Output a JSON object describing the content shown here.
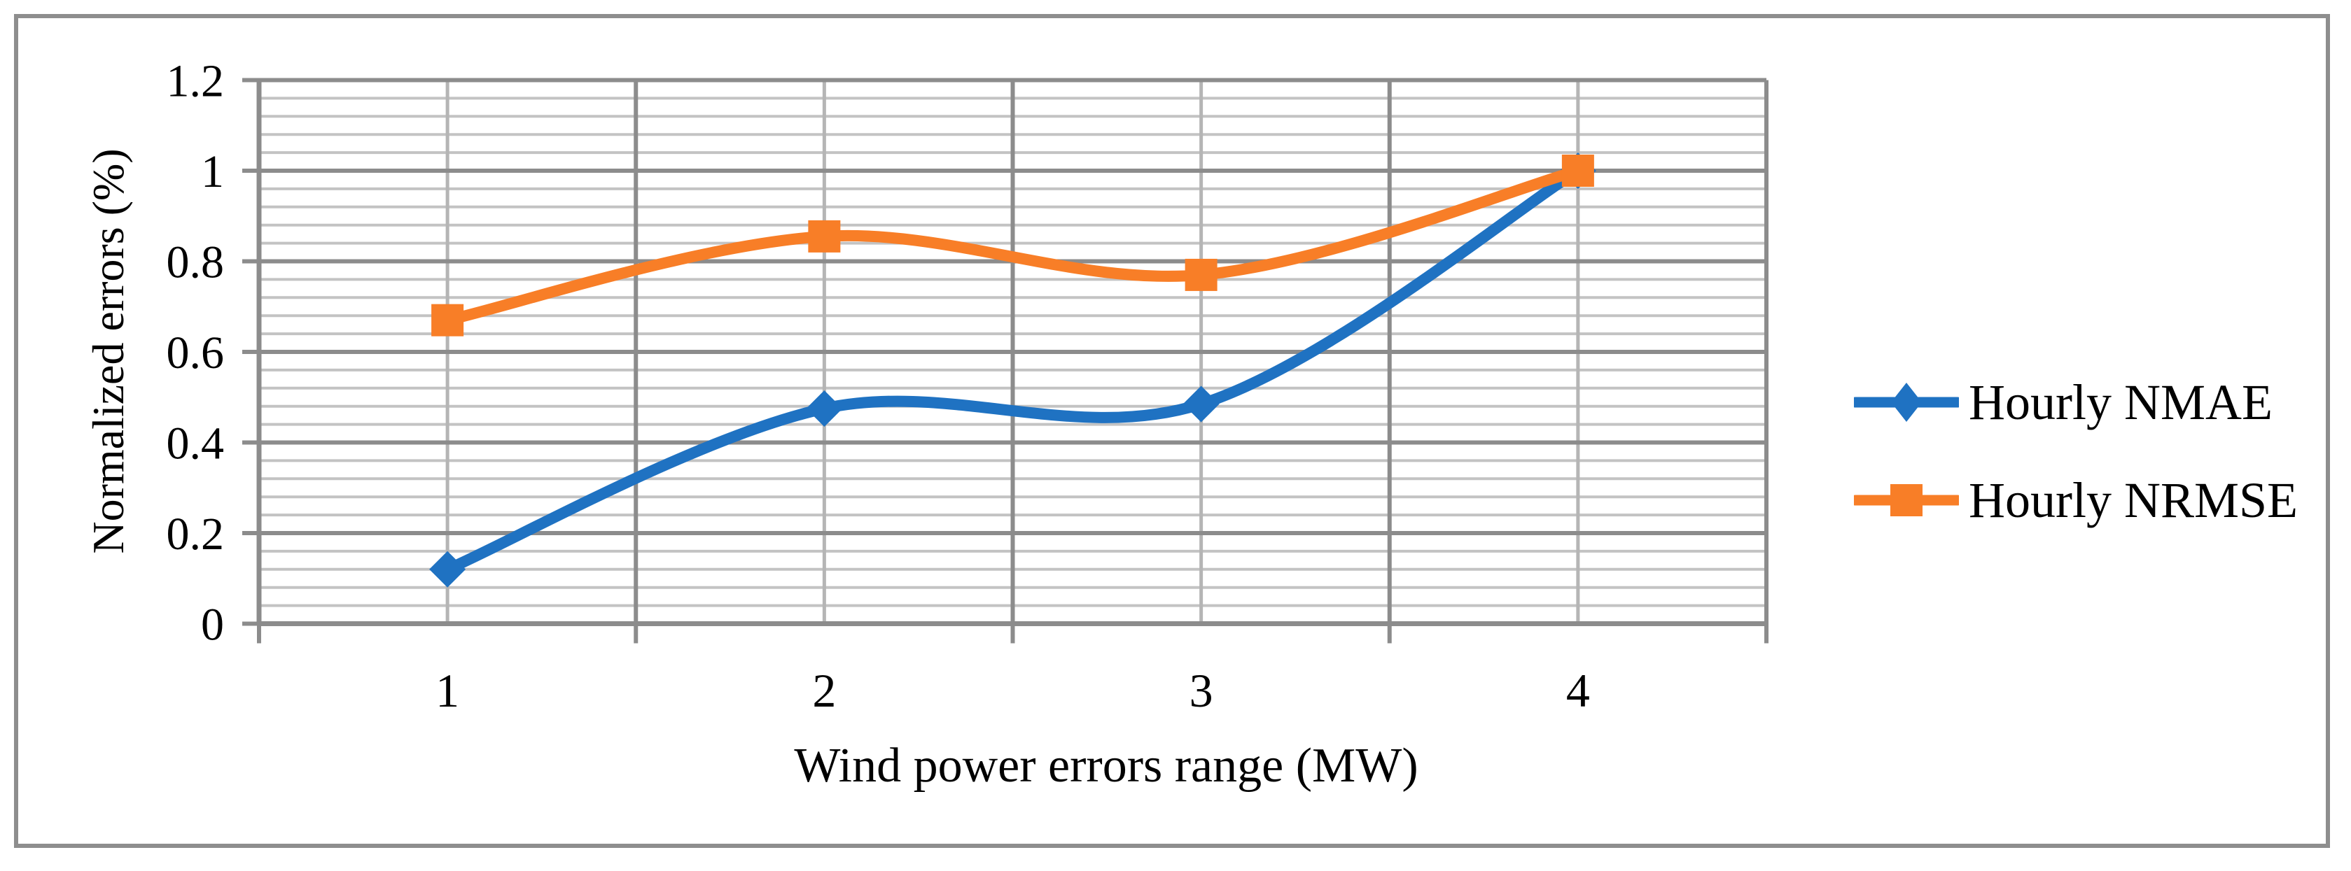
{
  "figure": {
    "background": "#ffffff",
    "border_color": "#8e8e8e"
  },
  "chart_data": {
    "type": "line",
    "title": "",
    "xlabel": "Wind power errors range (MW)",
    "ylabel": "Normalized errors (%)",
    "categories": [
      "1",
      "2",
      "3",
      "4"
    ],
    "y_tick_labels": [
      "0",
      "0.2",
      "0.4",
      "0.6",
      "0.8",
      "1",
      "1.2"
    ],
    "ylim": [
      0,
      1.2
    ],
    "y_major_step": 0.2,
    "y_minor_step": 0.04,
    "grid": "major and minor horizontal gridlines; vertical gridlines at category boundaries and centers",
    "smooth_lines": true,
    "legend_position": "right",
    "series": [
      {
        "name": "Hourly NMAE",
        "color": "#1f72c2",
        "marker": "diamond",
        "values": [
          0.12,
          0.475,
          0.485,
          1.0
        ]
      },
      {
        "name": "Hourly NRMSE",
        "color": "#f87e27",
        "marker": "square",
        "values": [
          0.67,
          0.855,
          0.77,
          1.0
        ]
      }
    ],
    "colors": {
      "major_grid": "#8c8c8c",
      "minor_grid": "#c3c3c3",
      "vertical_minor_grid": "#b5b5b5",
      "axis": "#8c8c8c",
      "text": "#000000"
    }
  }
}
